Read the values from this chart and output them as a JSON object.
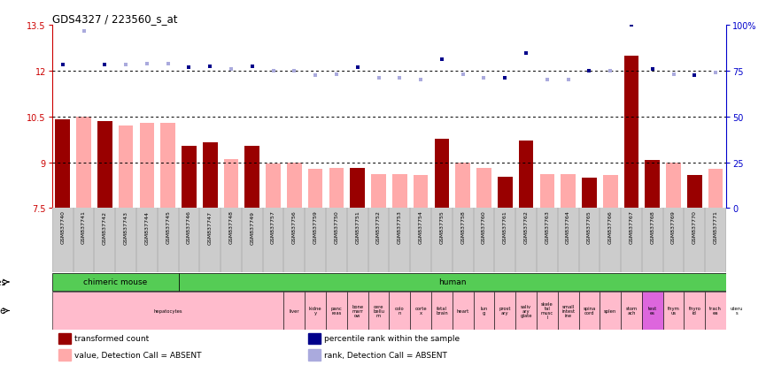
{
  "title": "GDS4327 / 223560_s_at",
  "samples": [
    "GSM837740",
    "GSM837741",
    "GSM837742",
    "GSM837743",
    "GSM837744",
    "GSM837745",
    "GSM837746",
    "GSM837747",
    "GSM837748",
    "GSM837749",
    "GSM837757",
    "GSM837756",
    "GSM837759",
    "GSM837750",
    "GSM837751",
    "GSM837752",
    "GSM837753",
    "GSM837754",
    "GSM837755",
    "GSM837758",
    "GSM837760",
    "GSM837761",
    "GSM837762",
    "GSM837763",
    "GSM837764",
    "GSM837765",
    "GSM837766",
    "GSM837767",
    "GSM837768",
    "GSM837769",
    "GSM837770",
    "GSM837771"
  ],
  "values": [
    10.4,
    10.5,
    10.35,
    10.2,
    10.28,
    10.28,
    9.55,
    9.65,
    9.1,
    9.55,
    8.95,
    9.0,
    8.78,
    8.82,
    8.82,
    8.62,
    8.62,
    8.58,
    9.78,
    9.0,
    8.82,
    8.52,
    9.72,
    8.62,
    8.62,
    8.48,
    8.58,
    12.5,
    9.08,
    9.0,
    8.58,
    8.78
  ],
  "ranks_left_scale": [
    12.2,
    13.3,
    12.2,
    12.2,
    12.22,
    12.22,
    12.1,
    12.15,
    12.05,
    12.15,
    12.0,
    12.0,
    11.85,
    11.88,
    12.1,
    11.75,
    11.75,
    11.72,
    12.38,
    11.88,
    11.75,
    11.75,
    12.58,
    11.72,
    11.72,
    12.0,
    12.0,
    13.5,
    12.05,
    11.88,
    11.85,
    11.95
  ],
  "absent": [
    false,
    true,
    false,
    true,
    true,
    true,
    false,
    false,
    true,
    false,
    true,
    true,
    true,
    true,
    false,
    true,
    true,
    true,
    false,
    true,
    true,
    false,
    false,
    true,
    true,
    false,
    true,
    false,
    false,
    true,
    false,
    true
  ],
  "ylim_left": [
    7.5,
    13.5
  ],
  "ylim_right": [
    0,
    100
  ],
  "yticks_left": [
    7.5,
    9.0,
    10.5,
    12.0,
    13.5
  ],
  "yticks_left_labels": [
    "7.5",
    "9",
    "10.5",
    "12",
    "13.5"
  ],
  "yticks_right": [
    0,
    25,
    50,
    75,
    100
  ],
  "yticks_right_labels": [
    "0",
    "25",
    "50",
    "75",
    "100%"
  ],
  "hlines": [
    9.0,
    10.5,
    12.0
  ],
  "bar_color_present": "#990000",
  "bar_color_absent": "#ffaaaa",
  "scatter_color_present": "#00008B",
  "scatter_color_absent": "#aaaadd",
  "legend_items": [
    {
      "label": "transformed count",
      "color": "#990000"
    },
    {
      "label": "percentile rank within the sample",
      "color": "#00008B"
    },
    {
      "label": "value, Detection Call = ABSENT",
      "color": "#ffaaaa"
    },
    {
      "label": "rank, Detection Call = ABSENT",
      "color": "#aaaadd"
    }
  ],
  "bg_color": "#ffffff",
  "axis_color_left": "#cc0000",
  "axis_color_right": "#0000cc",
  "xtick_bg_color": "#cccccc",
  "species_color": "#55cc55",
  "tissue_color_normal": "#ffbbcc",
  "tissue_color_special": "#dd66dd"
}
